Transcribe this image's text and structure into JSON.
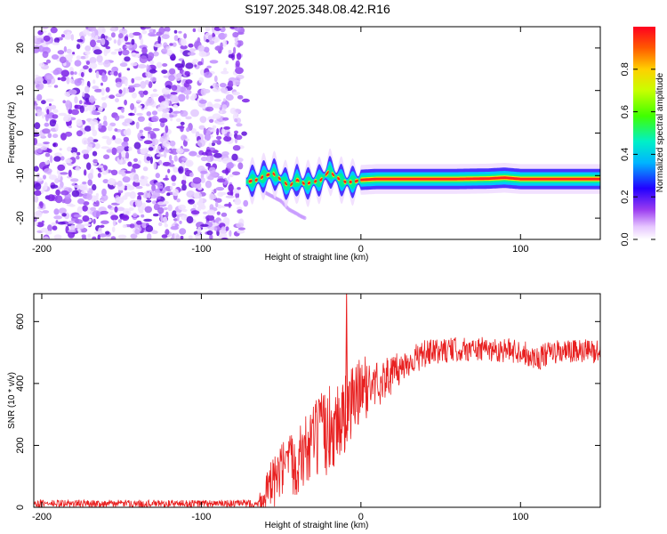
{
  "title": "S197.2025.348.08.42.R16",
  "chart_data": [
    {
      "type": "heatmap",
      "name": "spectrogram",
      "xlabel": "Height of straight line (km)",
      "ylabel": "Frequency (Hz)",
      "xlim": [
        -205,
        150
      ],
      "ylim": [
        -25,
        25
      ],
      "xticks": [
        -200,
        -100,
        0,
        100
      ],
      "yticks": [
        -20,
        -10,
        0,
        10,
        20
      ],
      "colorbar": {
        "label": "Normalized spectral amplitude",
        "range": [
          0,
          1
        ],
        "ticks": [
          0.0,
          0.2,
          0.4,
          0.6,
          0.8
        ],
        "tick_labels": [
          "0.0",
          "0.2",
          "0.4",
          "0.6",
          "0.8"
        ]
      },
      "noise_region_x": [
        -205,
        -75
      ],
      "signal_track": {
        "x": [
          -72,
          -65,
          -60,
          -55,
          -50,
          -45,
          -40,
          -35,
          -30,
          -25,
          -20,
          -15,
          -10,
          -5,
          0,
          10,
          20,
          40,
          60,
          80,
          90,
          100,
          110,
          120,
          140,
          150
        ],
        "freq_hz": [
          -11.5,
          -11,
          -10,
          -9.5,
          -11,
          -12.5,
          -11,
          -12,
          -11.5,
          -11,
          -9,
          -10.5,
          -11.5,
          -11.5,
          -11,
          -10.8,
          -10.8,
          -10.8,
          -10.8,
          -10.7,
          -10.5,
          -10.8,
          -10.8,
          -10.8,
          -10.8,
          -10.8
        ]
      },
      "secondary_track": {
        "x": [
          -60,
          -50,
          -45,
          -40,
          -38,
          -35
        ],
        "freq_hz": [
          -14,
          -16,
          -18,
          -19,
          -19.5,
          -20
        ]
      }
    },
    {
      "type": "line",
      "name": "snr",
      "xlabel": "Height of straight line (km)",
      "ylabel": "SNR (10 * v/v)",
      "xlim": [
        -205,
        150
      ],
      "ylim": [
        0,
        690
      ],
      "xticks": [
        -200,
        -100,
        0,
        100
      ],
      "yticks": [
        0,
        200,
        400,
        600
      ],
      "color": "#e82020",
      "envelope": {
        "x": [
          -205,
          -65,
          -60,
          -50,
          -40,
          -30,
          -20,
          -10,
          0,
          10,
          20,
          30,
          40,
          50,
          60,
          80,
          100,
          110,
          120,
          150
        ],
        "baseline": [
          12,
          12,
          40,
          110,
          150,
          210,
          250,
          300,
          380,
          400,
          430,
          470,
          495,
          505,
          510,
          510,
          505,
          480,
          500,
          505
        ],
        "amplitude": [
          12,
          12,
          70,
          100,
          110,
          130,
          150,
          130,
          110,
          80,
          60,
          50,
          45,
          40,
          40,
          40,
          40,
          40,
          40,
          40
        ]
      },
      "spike": {
        "x": -9,
        "y": 690
      }
    }
  ]
}
